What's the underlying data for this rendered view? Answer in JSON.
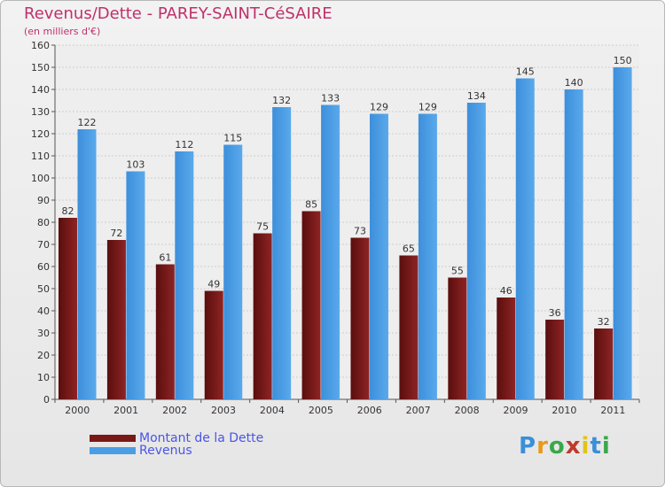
{
  "title": "Revenus/Dette - PAREY-SAINT-CéSAIRE",
  "subtitle": "(en milliers d'€)",
  "brand": {
    "letters": [
      "P",
      "r",
      "o",
      "x",
      "i",
      "t",
      "i"
    ],
    "colors": [
      "#3a8fd8",
      "#e89a18",
      "#3aa84a",
      "#c03a2a",
      "#e3c21a",
      "#3a8fd8",
      "#3aa84a"
    ]
  },
  "chart_data": {
    "type": "bar",
    "title": "Revenus/Dette - PAREY-SAINT-CéSAIRE",
    "ylabel": "(en milliers d'€)",
    "xlabel": "",
    "categories": [
      "2000",
      "2001",
      "2002",
      "2003",
      "2004",
      "2005",
      "2006",
      "2007",
      "2008",
      "2009",
      "2010",
      "2011"
    ],
    "series": [
      {
        "name": "Montant de la Dette",
        "color": "#7a1818",
        "values": [
          82,
          72,
          61,
          49,
          75,
          85,
          73,
          65,
          55,
          46,
          36,
          32
        ]
      },
      {
        "name": "Revenus",
        "color": "#4a9ee6",
        "values": [
          122,
          103,
          112,
          115,
          132,
          133,
          129,
          129,
          134,
          145,
          140,
          150
        ]
      }
    ],
    "ylim": [
      0,
      160
    ],
    "yticks": [
      0,
      10,
      20,
      30,
      40,
      50,
      60,
      70,
      80,
      90,
      100,
      110,
      120,
      130,
      140,
      150,
      160
    ],
    "grid": true,
    "legend": "bottom-left"
  }
}
